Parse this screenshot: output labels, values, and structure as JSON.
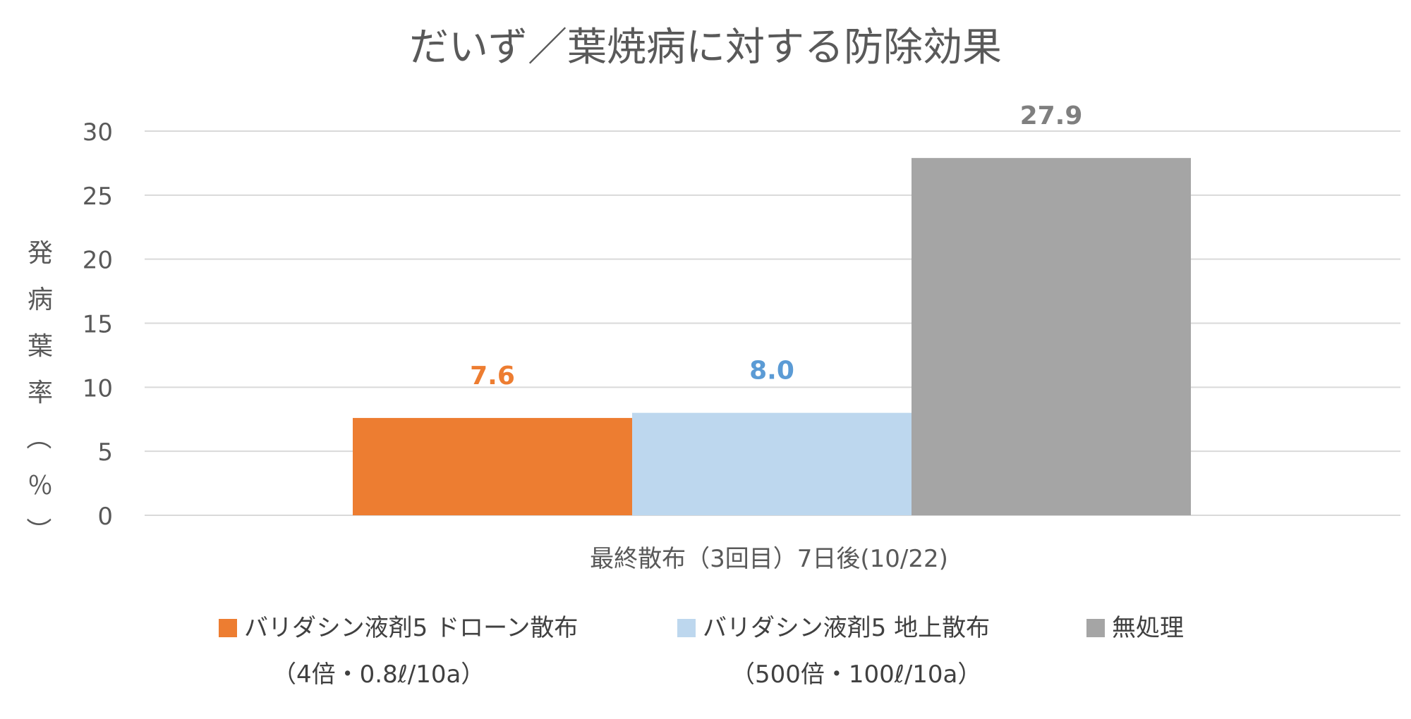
{
  "chart_data": {
    "type": "bar",
    "title": "だいず／葉焼病に対する防除効果",
    "xlabel": "最終散布（3回目）7日後(10/22)",
    "ylabel": "発病葉率（％）",
    "ylim": [
      0,
      30
    ],
    "yticks": [
      0,
      5,
      10,
      15,
      20,
      25,
      30
    ],
    "grid": true,
    "legend_position": "bottom",
    "categories": [
      "最終散布（3回目）7日後(10/22)"
    ],
    "series": [
      {
        "name": "バリダシン液剤5 ドローン散布",
        "sub": "（4倍・0.8ℓ/10a）",
        "values": [
          7.6
        ],
        "label": "7.6",
        "color": "#ED7D31",
        "label_color": "#ED7D31"
      },
      {
        "name": "バリダシン液剤5 地上散布",
        "sub": "（500倍・100ℓ/10a）",
        "values": [
          8.0
        ],
        "label": "8.0",
        "color": "#BDD7EE",
        "label_color": "#5B9BD5"
      },
      {
        "name": "無処理",
        "sub": "",
        "values": [
          27.9
        ],
        "label": "27.9",
        "color": "#A5A5A5",
        "label_color": "#7F7F7F"
      }
    ]
  }
}
